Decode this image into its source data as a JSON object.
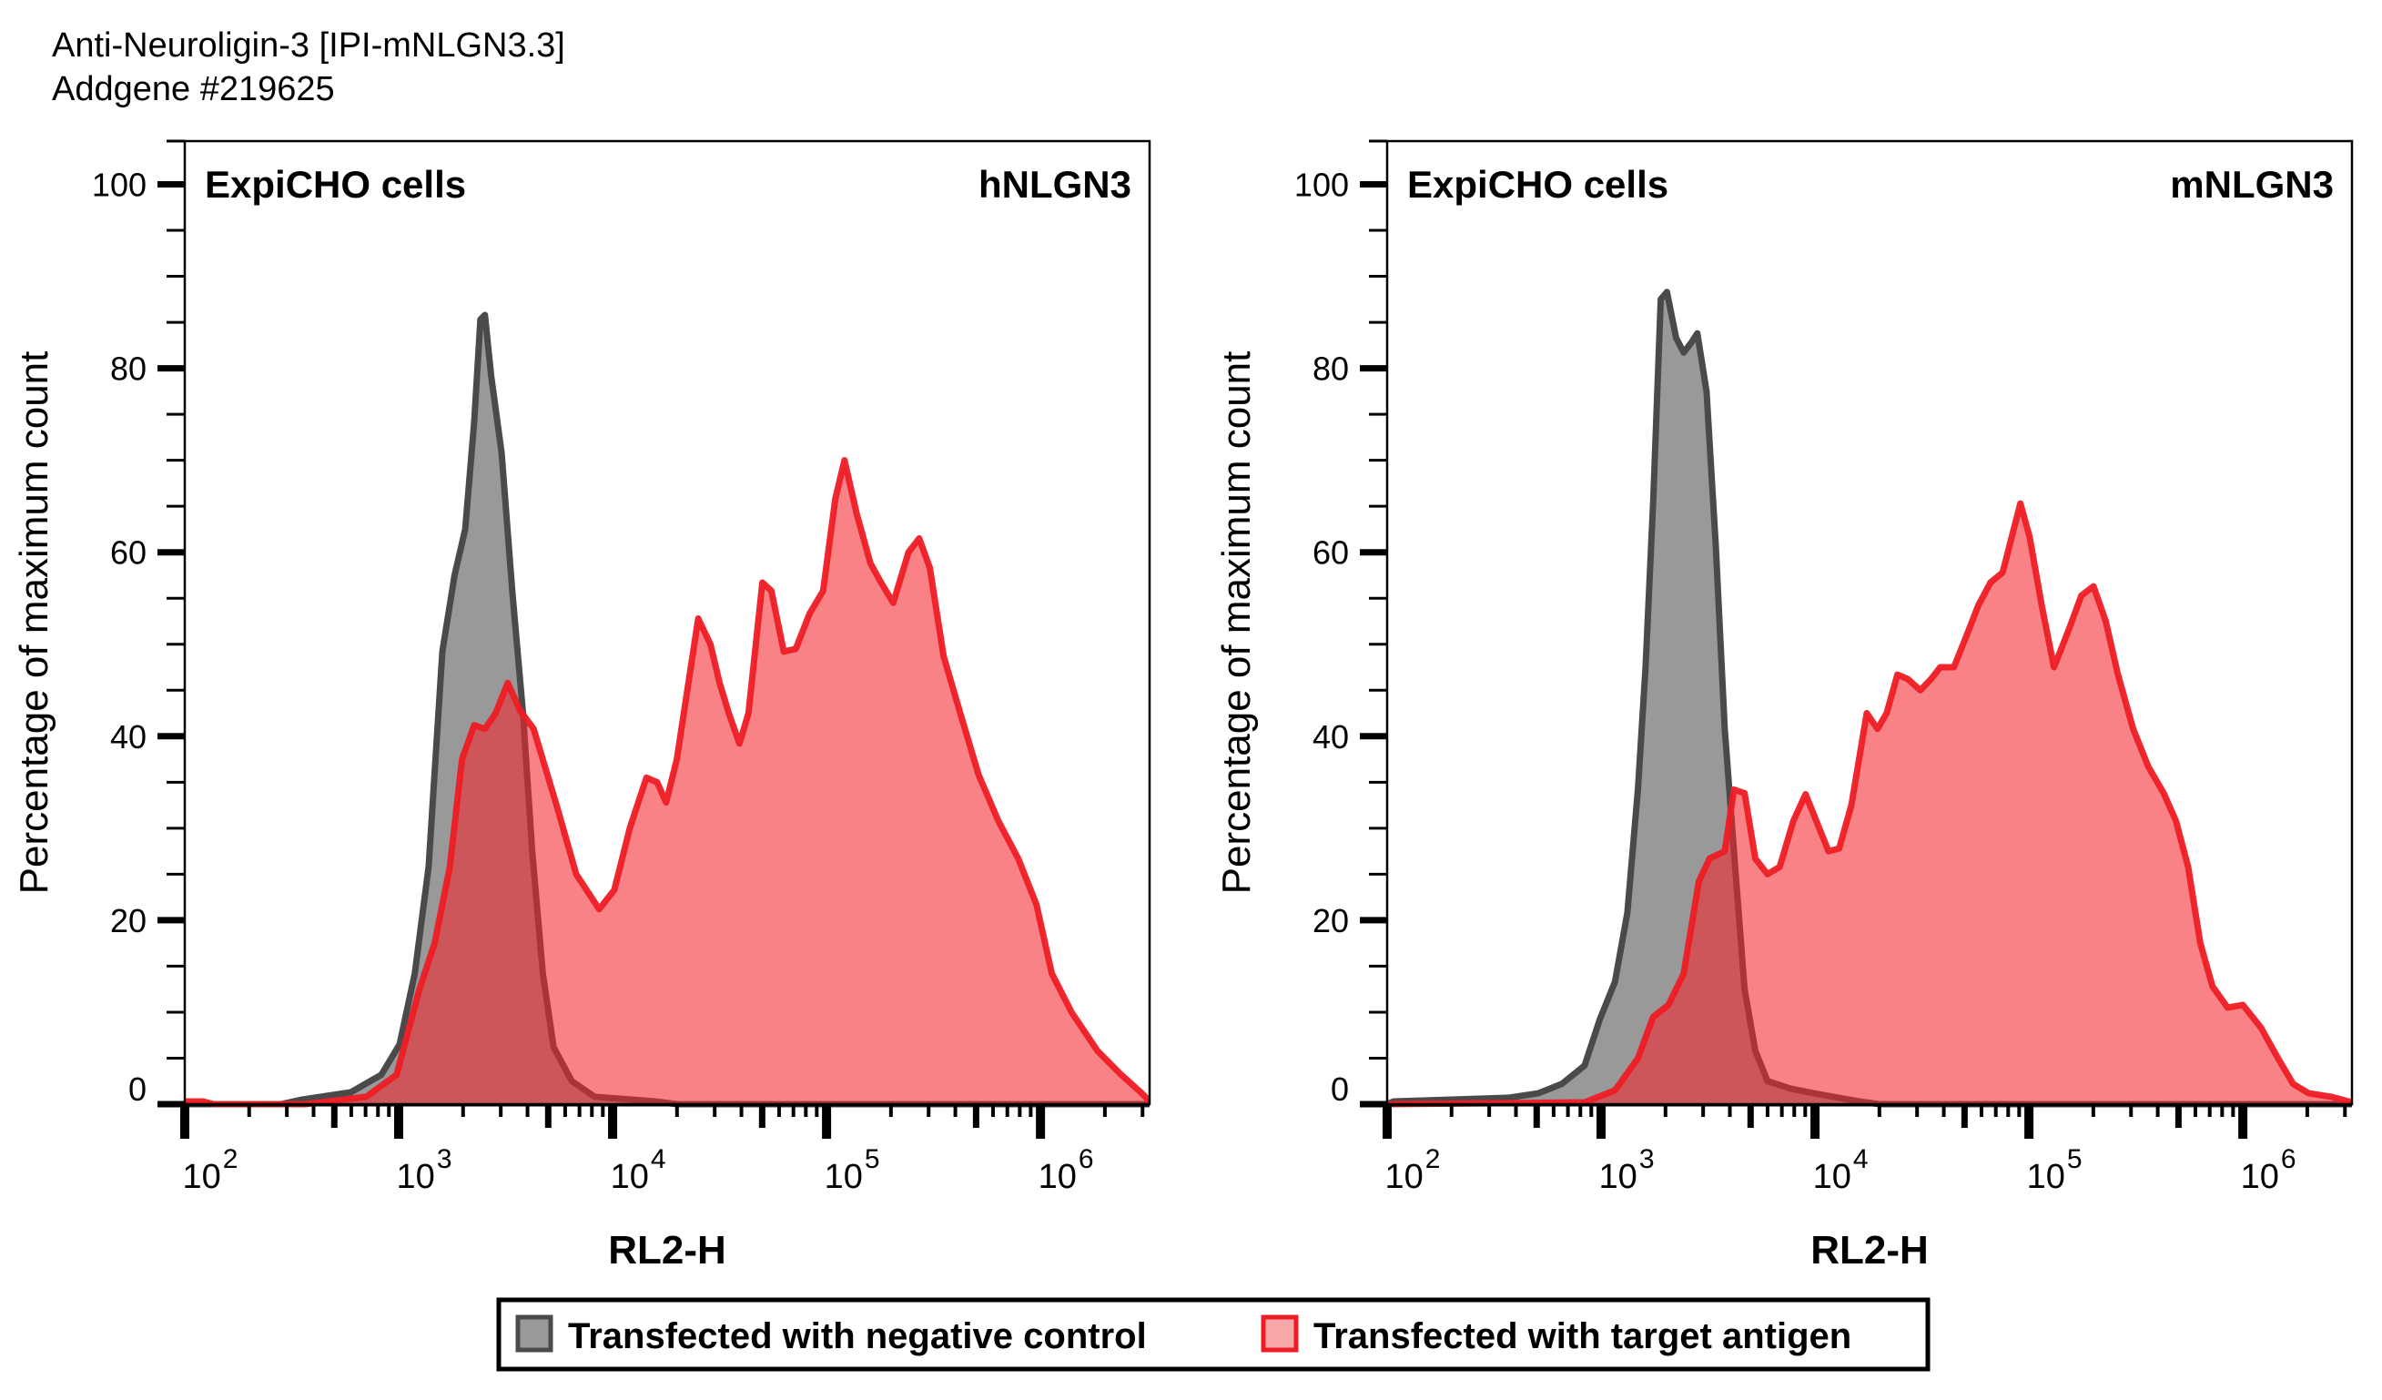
{
  "header": {
    "title_line1": "Anti-Neuroligin-3 [IPI-mNLGN3.3]",
    "title_line2": "Addgene #219625"
  },
  "colors": {
    "control_fill": "#999999",
    "control_line": "#4a4a4a",
    "antigen_fill": "#f2232b",
    "antigen_line": "#ee1c24",
    "axis": "#000000"
  },
  "legend": {
    "items": [
      {
        "label": "Transfected with negative control",
        "series": "control"
      },
      {
        "label": "Transfected with target antigen",
        "series": "antigen"
      }
    ]
  },
  "chart_data": [
    {
      "type": "area",
      "title": "hNLGN3",
      "subtitle": "ExpiCHO cells",
      "xlabel": "RL2-H",
      "ylabel": "Percentage of maximum count",
      "xscale": "log",
      "x_units": "log10(RL2-H)",
      "xlim_log10": [
        2.0,
        6.51
      ],
      "ylim": [
        0,
        104.7
      ],
      "xticks": [
        {
          "base": "10",
          "exp": "2",
          "log10": 2
        },
        {
          "base": "10",
          "exp": "3",
          "log10": 3
        },
        {
          "base": "10",
          "exp": "4",
          "log10": 4
        },
        {
          "base": "10",
          "exp": "5",
          "log10": 5
        },
        {
          "base": "10",
          "exp": "6",
          "log10": 6
        }
      ],
      "yticks": [
        "0",
        "20",
        "40",
        "60",
        "80",
        "100"
      ],
      "series": [
        {
          "name": "Transfected with negative control",
          "key": "control",
          "points": [
            [
              2.0,
              0.0
            ],
            [
              2.45,
              0.0
            ],
            [
              2.548,
              0.5
            ],
            [
              2.776,
              1.3
            ],
            [
              2.919,
              3.2
            ],
            [
              3.004,
              6.5
            ],
            [
              3.075,
              14.2
            ],
            [
              3.14,
              25.8
            ],
            [
              3.204,
              49.2
            ],
            [
              3.261,
              57.5
            ],
            [
              3.311,
              62.5
            ],
            [
              3.353,
              74.2
            ],
            [
              3.382,
              85.3
            ],
            [
              3.403,
              85.8
            ],
            [
              3.432,
              79.2
            ],
            [
              3.481,
              70.8
            ],
            [
              3.531,
              55.8
            ],
            [
              3.581,
              42.5
            ],
            [
              3.624,
              27.5
            ],
            [
              3.674,
              14.2
            ],
            [
              3.724,
              6.2
            ],
            [
              3.809,
              2.5
            ],
            [
              3.916,
              0.8
            ],
            [
              4.2,
              0.3
            ],
            [
              4.3,
              0.0
            ],
            [
              6.51,
              0.0
            ]
          ]
        },
        {
          "name": "Transfected with target antigen",
          "key": "antigen",
          "points": [
            [
              2.0,
              0.3
            ],
            [
              2.085,
              0.3
            ],
            [
              2.135,
              0.0
            ],
            [
              2.563,
              0.0
            ],
            [
              2.848,
              0.8
            ],
            [
              2.99,
              3.2
            ],
            [
              3.097,
              12.5
            ],
            [
              3.168,
              17.5
            ],
            [
              3.239,
              25.8
            ],
            [
              3.296,
              37.5
            ],
            [
              3.353,
              41.2
            ],
            [
              3.403,
              40.8
            ],
            [
              3.453,
              42.5
            ],
            [
              3.51,
              45.8
            ],
            [
              3.567,
              42.8
            ],
            [
              3.631,
              40.8
            ],
            [
              3.738,
              32.5
            ],
            [
              3.83,
              25.0
            ],
            [
              3.937,
              21.2
            ],
            [
              4.008,
              23.3
            ],
            [
              4.08,
              30.0
            ],
            [
              4.158,
              35.5
            ],
            [
              4.208,
              35.0
            ],
            [
              4.25,
              32.8
            ],
            [
              4.3,
              37.5
            ],
            [
              4.4,
              52.8
            ],
            [
              4.457,
              50.0
            ],
            [
              4.5,
              45.8
            ],
            [
              4.543,
              42.5
            ],
            [
              4.593,
              39.2
            ],
            [
              4.635,
              42.5
            ],
            [
              4.7,
              56.7
            ],
            [
              4.742,
              55.8
            ],
            [
              4.8,
              49.2
            ],
            [
              4.856,
              49.5
            ],
            [
              4.92,
              53.3
            ],
            [
              4.984,
              55.8
            ],
            [
              5.041,
              65.8
            ],
            [
              5.084,
              70.0
            ],
            [
              5.141,
              64.2
            ],
            [
              5.205,
              58.8
            ],
            [
              5.255,
              56.7
            ],
            [
              5.312,
              54.5
            ],
            [
              5.383,
              60.0
            ],
            [
              5.433,
              61.5
            ],
            [
              5.483,
              58.3
            ],
            [
              5.547,
              48.7
            ],
            [
              5.625,
              42.5
            ],
            [
              5.711,
              35.8
            ],
            [
              5.803,
              30.8
            ],
            [
              5.896,
              26.7
            ],
            [
              5.981,
              21.7
            ],
            [
              6.053,
              14.2
            ],
            [
              6.145,
              10.0
            ],
            [
              6.266,
              5.8
            ],
            [
              6.373,
              3.3
            ],
            [
              6.473,
              1.2
            ],
            [
              6.51,
              0.3
            ]
          ]
        }
      ]
    },
    {
      "type": "area",
      "title": "mNLGN3",
      "subtitle": "ExpiCHO cells",
      "xlabel": "RL2-H",
      "ylabel": "Percentage of maximum count",
      "xscale": "log",
      "x_units": "log10(RL2-H)",
      "xlim_log10": [
        2.0,
        6.51
      ],
      "ylim": [
        0,
        104.7
      ],
      "xticks": [
        {
          "base": "10",
          "exp": "2",
          "log10": 2
        },
        {
          "base": "10",
          "exp": "3",
          "log10": 3
        },
        {
          "base": "10",
          "exp": "4",
          "log10": 4
        },
        {
          "base": "10",
          "exp": "5",
          "log10": 5
        },
        {
          "base": "10",
          "exp": "6",
          "log10": 6
        }
      ],
      "yticks": [
        "0",
        "20",
        "40",
        "60",
        "80",
        "100"
      ],
      "series": [
        {
          "name": "Transfected with negative control",
          "key": "control",
          "points": [
            [
              2.0,
              0.0
            ],
            [
              2.03,
              0.3
            ],
            [
              2.567,
              0.7
            ],
            [
              2.709,
              1.2
            ],
            [
              2.816,
              2.2
            ],
            [
              2.923,
              4.2
            ],
            [
              2.994,
              9.2
            ],
            [
              3.065,
              13.3
            ],
            [
              3.123,
              20.8
            ],
            [
              3.172,
              34.2
            ],
            [
              3.208,
              47.5
            ],
            [
              3.244,
              65.8
            ],
            [
              3.279,
              87.5
            ],
            [
              3.308,
              88.3
            ],
            [
              3.351,
              83.3
            ],
            [
              3.386,
              81.7
            ],
            [
              3.422,
              82.8
            ],
            [
              3.45,
              83.8
            ],
            [
              3.493,
              77.5
            ],
            [
              3.536,
              60.8
            ],
            [
              3.578,
              40.8
            ],
            [
              3.621,
              27.5
            ],
            [
              3.671,
              12.5
            ],
            [
              3.721,
              5.8
            ],
            [
              3.778,
              2.5
            ],
            [
              3.885,
              1.7
            ],
            [
              3.992,
              1.2
            ],
            [
              4.206,
              0.3
            ],
            [
              4.3,
              0.0
            ],
            [
              6.51,
              0.0
            ]
          ]
        },
        {
          "name": "Transfected with target antigen",
          "key": "antigen",
          "points": [
            [
              2.0,
              0.0
            ],
            [
              2.923,
              0.2
            ],
            [
              3.065,
              1.5
            ],
            [
              3.172,
              5.0
            ],
            [
              3.244,
              9.5
            ],
            [
              3.315,
              10.8
            ],
            [
              3.386,
              14.2
            ],
            [
              3.457,
              24.2
            ],
            [
              3.507,
              26.7
            ],
            [
              3.578,
              27.5
            ],
            [
              3.621,
              34.2
            ],
            [
              3.671,
              33.8
            ],
            [
              3.721,
              26.7
            ],
            [
              3.778,
              25.0
            ],
            [
              3.835,
              25.8
            ],
            [
              3.899,
              30.8
            ],
            [
              3.956,
              33.7
            ],
            [
              4.006,
              30.8
            ],
            [
              4.063,
              27.5
            ],
            [
              4.113,
              27.8
            ],
            [
              4.17,
              32.5
            ],
            [
              4.242,
              42.5
            ],
            [
              4.292,
              40.8
            ],
            [
              4.335,
              42.5
            ],
            [
              4.385,
              46.7
            ],
            [
              4.435,
              46.2
            ],
            [
              4.492,
              45.0
            ],
            [
              4.542,
              46.2
            ],
            [
              4.585,
              47.5
            ],
            [
              4.649,
              47.5
            ],
            [
              4.706,
              50.8
            ],
            [
              4.763,
              54.2
            ],
            [
              4.82,
              56.7
            ],
            [
              4.877,
              57.8
            ],
            [
              4.92,
              61.7
            ],
            [
              4.96,
              65.3
            ],
            [
              5.003,
              61.7
            ],
            [
              5.06,
              54.2
            ],
            [
              5.117,
              47.5
            ],
            [
              5.188,
              51.7
            ],
            [
              5.245,
              55.3
            ],
            [
              5.302,
              56.3
            ],
            [
              5.359,
              52.5
            ],
            [
              5.416,
              46.7
            ],
            [
              5.487,
              40.8
            ],
            [
              5.558,
              36.7
            ],
            [
              5.63,
              33.8
            ],
            [
              5.687,
              30.8
            ],
            [
              5.744,
              25.8
            ],
            [
              5.801,
              17.5
            ],
            [
              5.858,
              12.8
            ],
            [
              5.929,
              10.5
            ],
            [
              6.0,
              10.8
            ],
            [
              6.085,
              8.3
            ],
            [
              6.164,
              5.0
            ],
            [
              6.235,
              2.2
            ],
            [
              6.306,
              1.2
            ],
            [
              6.413,
              0.8
            ],
            [
              6.51,
              0.2
            ]
          ]
        }
      ]
    }
  ]
}
